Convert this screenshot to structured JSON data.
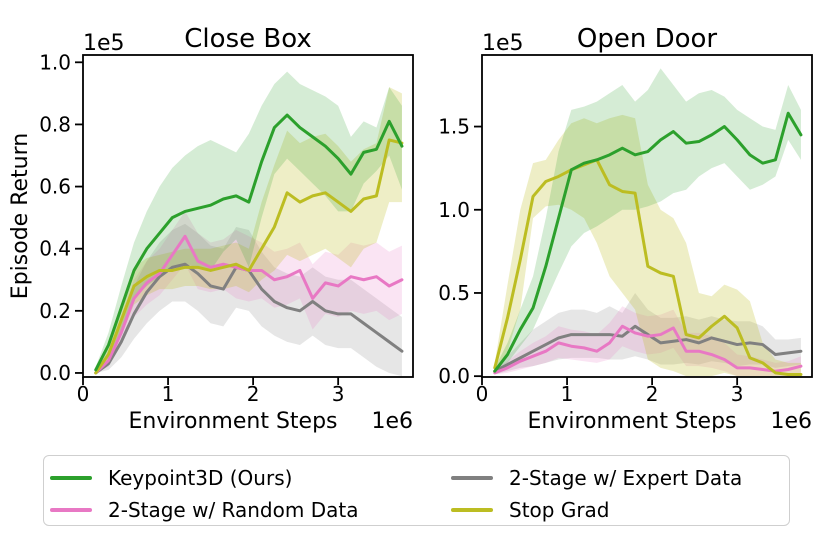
{
  "figure": {
    "ylabel": "Episode Return",
    "xlabel": "Environment Steps",
    "x_offset_label": "1e6",
    "y_offset_label": "1e5"
  },
  "legend": {
    "entries": [
      {
        "label": "Keypoint3D (Ours)",
        "color": "#2ca02c"
      },
      {
        "label": "2-Stage w/ Random Data",
        "color": "#e878c4"
      },
      {
        "label": "2-Stage w/ Expert Data",
        "color": "#808080"
      },
      {
        "label": "Stop Grad",
        "color": "#bcbd22"
      }
    ]
  },
  "chart_data": [
    {
      "type": "line",
      "title": "Close Box",
      "xlabel": "Environment Steps",
      "ylabel": "Episode Return",
      "x_offset_label": "1e6",
      "y_offset_label": "1e5",
      "xlim": [
        0,
        3.88
      ],
      "ylim": [
        -0.013,
        1.0235
      ],
      "xticks": [
        0,
        1,
        2,
        3
      ],
      "xticklabels": [
        "0",
        "1",
        "2",
        "3"
      ],
      "yticks": [
        0.0,
        0.2,
        0.4,
        0.6,
        0.8,
        1.0
      ],
      "yticklabels": [
        "0.0",
        "0.2",
        "0.4",
        "0.6",
        "0.8",
        "1.0"
      ],
      "grid": false,
      "x": [
        0.15,
        0.3,
        0.45,
        0.6,
        0.75,
        0.9,
        1.05,
        1.2,
        1.35,
        1.5,
        1.65,
        1.8,
        1.95,
        2.1,
        2.25,
        2.4,
        2.55,
        2.7,
        2.85,
        3.0,
        3.15,
        3.3,
        3.45,
        3.6,
        3.75
      ],
      "series": [
        {
          "name": "2-Stage w/ Expert Data",
          "color": "#808080",
          "fill_alpha": 0.2,
          "values": [
            0.0,
            0.03,
            0.1,
            0.19,
            0.26,
            0.31,
            0.34,
            0.35,
            0.32,
            0.28,
            0.27,
            0.34,
            0.33,
            0.27,
            0.23,
            0.21,
            0.2,
            0.23,
            0.2,
            0.19,
            0.19,
            0.16,
            0.13,
            0.1,
            0.07
          ],
          "upper": [
            0.01,
            0.06,
            0.16,
            0.28,
            0.36,
            0.42,
            0.46,
            0.48,
            0.45,
            0.41,
            0.4,
            0.47,
            0.46,
            0.39,
            0.34,
            0.32,
            0.31,
            0.34,
            0.31,
            0.3,
            0.3,
            0.27,
            0.24,
            0.21,
            0.18
          ],
          "lower": [
            0.0,
            0.01,
            0.05,
            0.11,
            0.16,
            0.2,
            0.23,
            0.23,
            0.2,
            0.16,
            0.15,
            0.21,
            0.2,
            0.15,
            0.12,
            0.1,
            0.09,
            0.12,
            0.09,
            0.08,
            0.08,
            0.05,
            0.02,
            0.0,
            -0.01
          ]
        },
        {
          "name": "2-Stage w/ Random Data",
          "color": "#e878c4",
          "fill_alpha": 0.2,
          "values": [
            0.0,
            0.04,
            0.13,
            0.24,
            0.29,
            0.32,
            0.38,
            0.44,
            0.36,
            0.34,
            0.35,
            0.34,
            0.33,
            0.33,
            0.3,
            0.31,
            0.33,
            0.24,
            0.29,
            0.28,
            0.31,
            0.3,
            0.31,
            0.28,
            0.3
          ],
          "upper": [
            0.01,
            0.07,
            0.18,
            0.3,
            0.36,
            0.4,
            0.46,
            0.52,
            0.45,
            0.42,
            0.43,
            0.46,
            0.44,
            0.42,
            0.39,
            0.4,
            0.42,
            0.35,
            0.39,
            0.38,
            0.42,
            0.41,
            0.42,
            0.39,
            0.41
          ],
          "lower": [
            0.0,
            0.02,
            0.09,
            0.18,
            0.22,
            0.25,
            0.3,
            0.35,
            0.27,
            0.26,
            0.27,
            0.24,
            0.23,
            0.24,
            0.21,
            0.22,
            0.24,
            0.14,
            0.19,
            0.18,
            0.2,
            0.19,
            0.2,
            0.17,
            0.19
          ]
        },
        {
          "name": "Stop Grad",
          "color": "#bcbd22",
          "fill_alpha": 0.26,
          "values": [
            0.0,
            0.06,
            0.17,
            0.28,
            0.31,
            0.33,
            0.33,
            0.34,
            0.34,
            0.33,
            0.34,
            0.35,
            0.33,
            0.4,
            0.47,
            0.58,
            0.55,
            0.57,
            0.58,
            0.55,
            0.52,
            0.56,
            0.57,
            0.75,
            0.74
          ],
          "upper": [
            0.01,
            0.09,
            0.22,
            0.34,
            0.37,
            0.38,
            0.39,
            0.4,
            0.4,
            0.4,
            0.41,
            0.42,
            0.4,
            0.55,
            0.67,
            0.78,
            0.74,
            0.76,
            0.77,
            0.73,
            0.68,
            0.72,
            0.74,
            0.92,
            0.9
          ],
          "lower": [
            0.0,
            0.03,
            0.12,
            0.22,
            0.25,
            0.27,
            0.27,
            0.28,
            0.28,
            0.27,
            0.27,
            0.28,
            0.26,
            0.3,
            0.33,
            0.38,
            0.36,
            0.38,
            0.4,
            0.37,
            0.34,
            0.4,
            0.42,
            0.55,
            0.55
          ]
        },
        {
          "name": "Keypoint3D (Ours)",
          "color": "#2ca02c",
          "fill_alpha": 0.2,
          "values": [
            0.01,
            0.09,
            0.21,
            0.33,
            0.4,
            0.45,
            0.5,
            0.52,
            0.53,
            0.54,
            0.56,
            0.57,
            0.55,
            0.68,
            0.79,
            0.83,
            0.79,
            0.76,
            0.73,
            0.69,
            0.64,
            0.71,
            0.72,
            0.81,
            0.73
          ],
          "upper": [
            0.02,
            0.13,
            0.28,
            0.42,
            0.52,
            0.6,
            0.66,
            0.7,
            0.73,
            0.75,
            0.73,
            0.71,
            0.77,
            0.86,
            0.93,
            0.97,
            0.93,
            0.91,
            0.89,
            0.86,
            0.76,
            0.81,
            0.79,
            0.92,
            0.86
          ],
          "lower": [
            0.0,
            0.05,
            0.14,
            0.24,
            0.28,
            0.31,
            0.34,
            0.35,
            0.34,
            0.33,
            0.39,
            0.43,
            0.34,
            0.5,
            0.64,
            0.69,
            0.65,
            0.61,
            0.57,
            0.52,
            0.52,
            0.61,
            0.65,
            0.7,
            0.59
          ]
        }
      ]
    },
    {
      "type": "line",
      "title": "Open Door",
      "xlabel": "Environment Steps",
      "ylabel": "",
      "x_offset_label": "1e6",
      "y_offset_label": "1e5",
      "xlim": [
        0,
        3.88
      ],
      "ylim": [
        -0.005,
        1.93
      ],
      "xticks": [
        0,
        1,
        2,
        3
      ],
      "xticklabels": [
        "0",
        "1",
        "2",
        "3"
      ],
      "yticks": [
        0.0,
        0.5,
        1.0,
        1.5
      ],
      "yticklabels": [
        "0.0",
        "0.5",
        "1.0",
        "1.5"
      ],
      "grid": false,
      "x": [
        0.15,
        0.3,
        0.45,
        0.6,
        0.75,
        0.9,
        1.05,
        1.2,
        1.35,
        1.5,
        1.65,
        1.8,
        1.95,
        2.1,
        2.25,
        2.4,
        2.55,
        2.7,
        2.85,
        3.0,
        3.15,
        3.3,
        3.45,
        3.6,
        3.75
      ],
      "series": [
        {
          "name": "2-Stage w/ Expert Data",
          "color": "#808080",
          "fill_alpha": 0.2,
          "values": [
            0.03,
            0.07,
            0.11,
            0.15,
            0.19,
            0.23,
            0.25,
            0.25,
            0.25,
            0.25,
            0.24,
            0.3,
            0.25,
            0.2,
            0.21,
            0.22,
            0.2,
            0.23,
            0.21,
            0.19,
            0.2,
            0.19,
            0.13,
            0.14,
            0.15
          ],
          "upper": [
            0.05,
            0.12,
            0.2,
            0.28,
            0.33,
            0.38,
            0.4,
            0.4,
            0.38,
            0.42,
            0.38,
            0.5,
            0.4,
            0.35,
            0.35,
            0.36,
            0.34,
            0.36,
            0.34,
            0.33,
            0.33,
            0.3,
            0.22,
            0.22,
            0.23
          ],
          "lower": [
            0.01,
            0.03,
            0.05,
            0.06,
            0.08,
            0.1,
            0.11,
            0.11,
            0.11,
            0.1,
            0.1,
            0.12,
            0.1,
            0.07,
            0.07,
            0.08,
            0.07,
            0.09,
            0.08,
            0.06,
            0.07,
            0.07,
            0.05,
            0.06,
            0.07
          ]
        },
        {
          "name": "2-Stage w/ Random Data",
          "color": "#e878c4",
          "fill_alpha": 0.2,
          "values": [
            0.02,
            0.05,
            0.09,
            0.12,
            0.15,
            0.2,
            0.18,
            0.17,
            0.15,
            0.2,
            0.3,
            0.26,
            0.24,
            0.25,
            0.29,
            0.15,
            0.15,
            0.13,
            0.1,
            0.05,
            0.05,
            0.04,
            0.03,
            0.04,
            0.06
          ],
          "upper": [
            0.04,
            0.09,
            0.15,
            0.2,
            0.24,
            0.3,
            0.28,
            0.27,
            0.25,
            0.32,
            0.42,
            0.38,
            0.36,
            0.37,
            0.4,
            0.26,
            0.26,
            0.24,
            0.2,
            0.13,
            0.12,
            0.1,
            0.08,
            0.09,
            0.12
          ],
          "lower": [
            0.01,
            0.02,
            0.04,
            0.06,
            0.08,
            0.11,
            0.1,
            0.09,
            0.08,
            0.1,
            0.18,
            0.15,
            0.13,
            0.14,
            0.17,
            0.06,
            0.06,
            0.05,
            0.03,
            0.0,
            0.0,
            0.0,
            0.0,
            0.0,
            0.01
          ]
        },
        {
          "name": "Stop Grad",
          "color": "#bcbd22",
          "fill_alpha": 0.26,
          "values": [
            0.05,
            0.35,
            0.7,
            1.08,
            1.17,
            1.2,
            1.24,
            1.27,
            1.3,
            1.15,
            1.11,
            1.1,
            0.66,
            0.62,
            0.6,
            0.25,
            0.23,
            0.3,
            0.36,
            0.29,
            0.11,
            0.08,
            0.02,
            0.01,
            0.01
          ],
          "upper": [
            0.08,
            0.55,
            1.0,
            1.28,
            1.3,
            1.42,
            1.52,
            1.55,
            1.52,
            1.55,
            1.57,
            1.55,
            1.15,
            1.0,
            0.95,
            0.8,
            0.5,
            0.48,
            0.55,
            0.52,
            0.45,
            0.2,
            0.1,
            0.08,
            0.08
          ],
          "lower": [
            0.02,
            0.15,
            0.4,
            0.95,
            1.02,
            1.03,
            1.0,
            0.95,
            0.8,
            0.6,
            0.5,
            0.4,
            0.1,
            0.05,
            0.03,
            0.0,
            0.0,
            0.0,
            0.02,
            0.0,
            0.0,
            0.0,
            0.0,
            0.0,
            0.0
          ]
        },
        {
          "name": "Keypoint3D (Ours)",
          "color": "#2ca02c",
          "fill_alpha": 0.2,
          "values": [
            0.03,
            0.13,
            0.28,
            0.41,
            0.66,
            0.95,
            1.24,
            1.28,
            1.3,
            1.33,
            1.37,
            1.33,
            1.35,
            1.42,
            1.47,
            1.4,
            1.41,
            1.45,
            1.5,
            1.42,
            1.33,
            1.28,
            1.3,
            1.58,
            1.45
          ],
          "upper": [
            0.05,
            0.2,
            0.4,
            0.6,
            0.95,
            1.35,
            1.6,
            1.62,
            1.65,
            1.7,
            1.75,
            1.65,
            1.72,
            1.85,
            1.75,
            1.65,
            1.7,
            1.72,
            1.68,
            1.6,
            1.55,
            1.5,
            1.48,
            1.75,
            1.6
          ],
          "lower": [
            0.02,
            0.08,
            0.18,
            0.28,
            0.45,
            0.62,
            0.78,
            0.86,
            0.9,
            0.95,
            1.0,
            1.0,
            1.02,
            1.05,
            1.1,
            1.12,
            1.2,
            1.25,
            1.28,
            1.2,
            1.12,
            1.15,
            1.2,
            1.42,
            1.3
          ]
        }
      ]
    }
  ]
}
